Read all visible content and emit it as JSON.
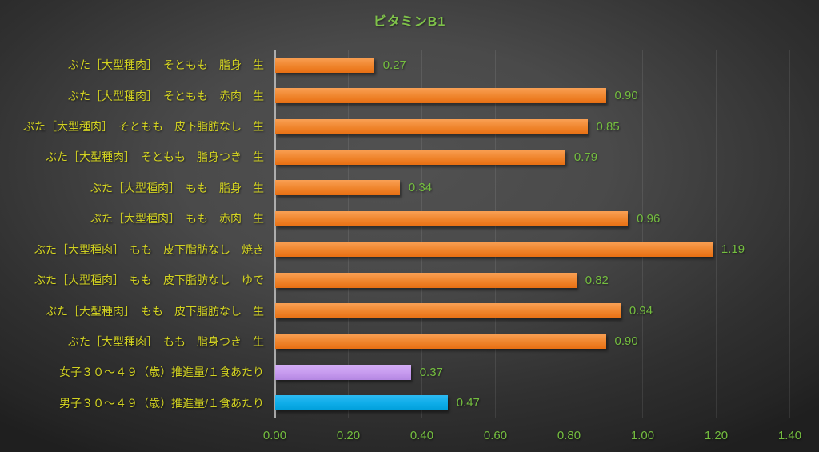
{
  "chart_data": {
    "type": "bar",
    "orientation": "horizontal",
    "title": "ビタミンB1",
    "categories": [
      "ぶた［大型種肉］　そともも　脂身　生",
      "ぶた［大型種肉］　そともも　赤肉　生",
      "ぶた［大型種肉］　そともも　皮下脂肪なし　生",
      "ぶた［大型種肉］　そともも　脂身つき　生",
      "ぶた［大型種肉］　もも　脂身　生",
      "ぶた［大型種肉］　もも　赤肉　生",
      "ぶた［大型種肉］　もも　皮下脂肪なし　焼き",
      "ぶた［大型種肉］　もも　皮下脂肪なし　ゆで",
      "ぶた［大型種肉］　もも　皮下脂肪なし　生",
      "ぶた［大型種肉］　もも　脂身つき　生",
      "女子３０～４９（歳）推進量/１食あたり",
      "男子３０～４９（歳）推進量/１食あたり"
    ],
    "values": [
      0.27,
      0.9,
      0.85,
      0.79,
      0.34,
      0.96,
      1.19,
      0.82,
      0.94,
      0.9,
      0.37,
      0.47
    ],
    "value_labels": [
      "0.27",
      "0.90",
      "0.85",
      "0.79",
      "0.34",
      "0.96",
      "1.19",
      "0.82",
      "0.94",
      "0.90",
      "0.37",
      "0.47"
    ],
    "bar_color_keys": [
      "orange",
      "orange",
      "orange",
      "orange",
      "orange",
      "orange",
      "orange",
      "orange",
      "orange",
      "orange",
      "purple",
      "blue"
    ],
    "xlim": [
      0,
      1.4
    ],
    "x_ticks": [
      "0.00",
      "0.20",
      "0.40",
      "0.60",
      "0.80",
      "1.00",
      "1.20",
      "1.40"
    ],
    "grid": true,
    "legend": "none"
  },
  "colors": {
    "background_center": "#535353",
    "background_edge": "#252525",
    "title_text": "#7fc24a",
    "category_text": "#d3d321",
    "number_text": "#74be3f",
    "gridline": "#5a5a5a",
    "axis_line": "#bebebe",
    "palette": {
      "orange": {
        "top": "#f9a055",
        "mid": "#f0862e",
        "bottom": "#e86f12"
      },
      "purple": {
        "top": "#d4aef6",
        "mid": "#c79bef",
        "bottom": "#b487e2"
      },
      "blue": {
        "top": "#2cbaf2",
        "mid": "#0fade9",
        "bottom": "#009fda"
      }
    }
  }
}
